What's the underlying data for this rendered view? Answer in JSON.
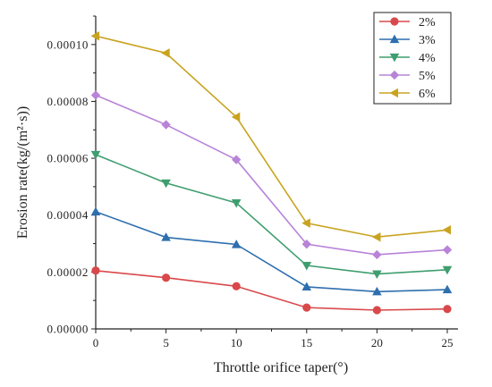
{
  "chart_data": {
    "type": "line",
    "xlabel": "Throttle orifice taper(°)",
    "ylabel": "Erosion rate(kg/(m²·s))",
    "x": [
      0,
      5,
      10,
      15,
      20,
      25
    ],
    "xlim": [
      0,
      27
    ],
    "ylim": [
      0,
      0.00011
    ],
    "xticks": [
      0,
      5,
      10,
      15,
      20,
      25
    ],
    "xtick_labels": [
      "0",
      "5",
      "10",
      "15",
      "20",
      "25"
    ],
    "yticks": [
      0,
      2e-05,
      4e-05,
      6e-05,
      8e-05,
      0.0001
    ],
    "ytick_labels": [
      "0.00000",
      "0.00002",
      "0.00004",
      "0.00006",
      "0.00008",
      "0.00010"
    ],
    "grid": false,
    "legend_position": "top-right",
    "series": [
      {
        "name": "2%",
        "color": "#d9484a",
        "marker": "circle",
        "values": [
          2.05e-05,
          1.8e-05,
          1.5e-05,
          7.5e-06,
          6.6e-06,
          7e-06
        ]
      },
      {
        "name": "3%",
        "color": "#2e6fae",
        "marker": "triangle-up",
        "values": [
          4.12e-05,
          3.22e-05,
          2.97e-05,
          1.48e-05,
          1.31e-05,
          1.38e-05
        ]
      },
      {
        "name": "4%",
        "color": "#3e9e6f",
        "marker": "triangle-down",
        "values": [
          6.13e-05,
          5.13e-05,
          4.43e-05,
          2.23e-05,
          1.93e-05,
          2.08e-05
        ]
      },
      {
        "name": "5%",
        "color": "#b883d8",
        "marker": "diamond",
        "values": [
          8.22e-05,
          7.18e-05,
          5.95e-05,
          2.98e-05,
          2.61e-05,
          2.78e-05
        ]
      },
      {
        "name": "6%",
        "color": "#c9a320",
        "marker": "triangle-left",
        "values": [
          0.000103,
          9.7e-05,
          7.45e-05,
          3.72e-05,
          3.23e-05,
          3.48e-05
        ]
      }
    ]
  }
}
